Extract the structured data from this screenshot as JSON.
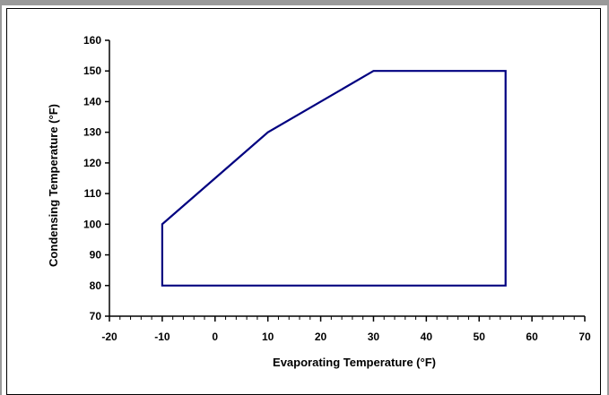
{
  "chart_data": {
    "type": "line",
    "title": "",
    "xlabel": "Evaporating Temperature (°F)",
    "ylabel": "Condensing Temperature (°F)",
    "xlim": [
      -20,
      70
    ],
    "ylim": [
      70,
      160
    ],
    "x_ticks": [
      -20,
      -10,
      0,
      10,
      20,
      30,
      40,
      50,
      60,
      70
    ],
    "x_tick_labels": [
      "-20",
      "-10",
      "0",
      "10",
      "20",
      "30",
      "40",
      "50",
      "60",
      "70"
    ],
    "y_ticks": [
      70,
      80,
      90,
      100,
      110,
      120,
      130,
      140,
      150,
      160
    ],
    "y_tick_labels": [
      "70",
      "80",
      "90",
      "100",
      "110",
      "120",
      "130",
      "140",
      "150",
      "160"
    ],
    "x_minor_step": 2,
    "grid": false,
    "legend": "none",
    "series": [
      {
        "color": "#000080",
        "closed": true,
        "points": [
          {
            "x": -10,
            "y": 80
          },
          {
            "x": -10,
            "y": 100
          },
          {
            "x": 10,
            "y": 130
          },
          {
            "x": 30,
            "y": 150
          },
          {
            "x": 55,
            "y": 150
          },
          {
            "x": 55,
            "y": 80
          }
        ]
      }
    ]
  }
}
